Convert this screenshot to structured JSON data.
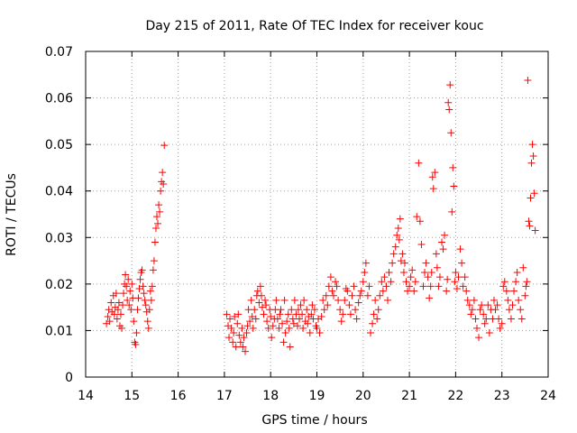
{
  "chart_data": {
    "type": "scatter",
    "title": "Day 215 of 2011, Rate Of TEC Index for receiver kouc",
    "xlabel": "GPS time / hours",
    "ylabel": "ROTI / TECUs",
    "xlim": [
      14,
      24
    ],
    "ylim": [
      0,
      0.07
    ],
    "xticks": [
      "14",
      "15",
      "16",
      "17",
      "18",
      "19",
      "20",
      "21",
      "22",
      "23",
      "24"
    ],
    "yticks": [
      "0",
      "0.01",
      "0.02",
      "0.03",
      "0.04",
      "0.05",
      "0.06",
      "0.07"
    ],
    "grid": true,
    "marker": "+",
    "color": "#ff0000",
    "series": [
      {
        "x": [
          14.45,
          14.48,
          14.5,
          14.52,
          14.55,
          14.57,
          14.6,
          14.62,
          14.64,
          14.66,
          14.68,
          14.7,
          14.72,
          14.74,
          14.76,
          14.78,
          14.8,
          14.82,
          14.84,
          14.86,
          14.88,
          14.9,
          14.92,
          14.94,
          14.96,
          14.98,
          15.0,
          15.02,
          15.04,
          15.06,
          15.08,
          15.1,
          15.12,
          15.14,
          15.16,
          15.18,
          15.2,
          15.22,
          15.24,
          15.26,
          15.28,
          15.3,
          15.32,
          15.34,
          15.36,
          15.38,
          15.4,
          15.42,
          15.44,
          15.46,
          15.48,
          15.5,
          15.52,
          15.54,
          15.56,
          15.58,
          15.6,
          15.62,
          15.64,
          15.66,
          15.68,
          15.7,
          17.05,
          17.08,
          17.1,
          17.12,
          17.15,
          17.18,
          17.2,
          17.22,
          17.25,
          17.28,
          17.3,
          17.32,
          17.35,
          17.38,
          17.4,
          17.42,
          17.45,
          17.48,
          17.5,
          17.52,
          17.55,
          17.58,
          17.6,
          17.62,
          17.65,
          17.68,
          17.7,
          17.72,
          17.75,
          17.78,
          17.8,
          17.82,
          17.85,
          17.88,
          17.9,
          17.92,
          17.95,
          17.98,
          18.0,
          18.02,
          18.05,
          18.08,
          18.1,
          18.12,
          18.15,
          18.18,
          18.2,
          18.22,
          18.25,
          18.28,
          18.3,
          18.32,
          18.35,
          18.38,
          18.4,
          18.42,
          18.45,
          18.48,
          18.5,
          18.52,
          18.55,
          18.58,
          18.6,
          18.62,
          18.65,
          18.68,
          18.7,
          18.72,
          18.75,
          18.78,
          18.8,
          18.82,
          18.85,
          18.88,
          18.9,
          18.92,
          18.95,
          18.98,
          19.0,
          19.03,
          19.06,
          19.1,
          19.13,
          19.16,
          19.2,
          19.23,
          19.26,
          19.3,
          19.33,
          19.36,
          19.4,
          19.43,
          19.46,
          19.5,
          19.53,
          19.56,
          19.6,
          19.63,
          19.66,
          19.7,
          19.73,
          19.76,
          19.8,
          19.83,
          19.86,
          19.9,
          19.93,
          19.96,
          20.0,
          20.03,
          20.06,
          20.1,
          20.13,
          20.16,
          20.2,
          20.23,
          20.26,
          20.3,
          20.33,
          20.36,
          20.4,
          20.43,
          20.46,
          20.5,
          20.53,
          20.56,
          20.6,
          20.63,
          20.66,
          20.7,
          20.73,
          20.76,
          20.78,
          20.8,
          20.82,
          20.85,
          20.88,
          20.9,
          20.93,
          20.96,
          21.0,
          21.03,
          21.06,
          21.1,
          21.13,
          21.16,
          21.2,
          21.23,
          21.26,
          21.3,
          21.33,
          21.36,
          21.4,
          21.43,
          21.46,
          21.48,
          21.5,
          21.52,
          21.55,
          21.58,
          21.6,
          21.63,
          21.66,
          21.7,
          21.73,
          21.76,
          21.8,
          21.82,
          21.84,
          21.86,
          21.88,
          21.9,
          21.92,
          21.94,
          21.96,
          21.98,
          22.0,
          22.03,
          22.06,
          22.1,
          22.13,
          22.16,
          22.2,
          22.23,
          22.26,
          22.3,
          22.33,
          22.36,
          22.4,
          22.43,
          22.46,
          22.5,
          22.53,
          22.56,
          22.6,
          22.63,
          22.66,
          22.7,
          22.73,
          22.76,
          22.8,
          22.83,
          22.86,
          22.9,
          22.93,
          22.96,
          23.0,
          23.03,
          23.06,
          23.1,
          23.13,
          23.16,
          23.2,
          23.23,
          23.26,
          23.3,
          23.33,
          23.36,
          23.4,
          23.43,
          23.46,
          23.5,
          23.52,
          23.54,
          23.56,
          23.58,
          23.6,
          23.62,
          23.64,
          23.66,
          23.68,
          23.7,
          23.72
        ],
        "y": [
          0.0115,
          0.013,
          0.0145,
          0.012,
          0.016,
          0.014,
          0.0175,
          0.0135,
          0.015,
          0.018,
          0.0125,
          0.0145,
          0.016,
          0.011,
          0.0135,
          0.0105,
          0.0155,
          0.018,
          0.02,
          0.022,
          0.0195,
          0.0165,
          0.021,
          0.0155,
          0.0185,
          0.0145,
          0.02,
          0.017,
          0.012,
          0.0075,
          0.007,
          0.0095,
          0.0145,
          0.017,
          0.019,
          0.021,
          0.0225,
          0.023,
          0.0195,
          0.018,
          0.0165,
          0.0155,
          0.014,
          0.012,
          0.0105,
          0.0145,
          0.0185,
          0.0165,
          0.0195,
          0.023,
          0.025,
          0.029,
          0.032,
          0.0345,
          0.033,
          0.037,
          0.0355,
          0.04,
          0.042,
          0.044,
          0.0415,
          0.0498,
          0.0135,
          0.011,
          0.0085,
          0.0125,
          0.0105,
          0.0075,
          0.0095,
          0.013,
          0.0065,
          0.0115,
          0.0135,
          0.009,
          0.0075,
          0.0105,
          0.0065,
          0.0085,
          0.0055,
          0.0095,
          0.011,
          0.0145,
          0.012,
          0.0165,
          0.013,
          0.0105,
          0.0145,
          0.0125,
          0.0175,
          0.0185,
          0.016,
          0.0195,
          0.0175,
          0.015,
          0.0135,
          0.0165,
          0.0155,
          0.012,
          0.0105,
          0.0145,
          0.013,
          0.0085,
          0.011,
          0.0125,
          0.0145,
          0.0165,
          0.0125,
          0.0105,
          0.0135,
          0.0145,
          0.0115,
          0.0075,
          0.0165,
          0.0095,
          0.012,
          0.0135,
          0.0105,
          0.0065,
          0.0145,
          0.0125,
          0.0115,
          0.0165,
          0.0135,
          0.011,
          0.0145,
          0.0125,
          0.0155,
          0.0135,
          0.0105,
          0.0165,
          0.012,
          0.0145,
          0.0115,
          0.013,
          0.0095,
          0.0135,
          0.0155,
          0.0125,
          0.0145,
          0.011,
          0.0105,
          0.0125,
          0.0095,
          0.013,
          0.0165,
          0.0145,
          0.0175,
          0.0155,
          0.0195,
          0.0215,
          0.0185,
          0.0175,
          0.0205,
          0.0195,
          0.0165,
          0.0145,
          0.012,
          0.0135,
          0.0165,
          0.019,
          0.0185,
          0.0155,
          0.0135,
          0.0175,
          0.0195,
          0.0145,
          0.0125,
          0.016,
          0.0175,
          0.0185,
          0.0205,
          0.0225,
          0.0245,
          0.0175,
          0.0195,
          0.0095,
          0.0115,
          0.0135,
          0.0165,
          0.0125,
          0.0145,
          0.0175,
          0.0205,
          0.0185,
          0.0215,
          0.0195,
          0.0165,
          0.0225,
          0.0205,
          0.0245,
          0.0265,
          0.028,
          0.0305,
          0.032,
          0.0295,
          0.034,
          0.025,
          0.0265,
          0.0225,
          0.0245,
          0.0205,
          0.0185,
          0.0195,
          0.0215,
          0.023,
          0.0185,
          0.0205,
          0.0345,
          0.046,
          0.0335,
          0.0285,
          0.0195,
          0.0225,
          0.0245,
          0.0215,
          0.017,
          0.0195,
          0.0225,
          0.043,
          0.0405,
          0.044,
          0.0265,
          0.0235,
          0.0195,
          0.0215,
          0.029,
          0.0275,
          0.0305,
          0.0185,
          0.021,
          0.059,
          0.0575,
          0.0628,
          0.0525,
          0.0355,
          0.045,
          0.041,
          0.0205,
          0.0225,
          0.019,
          0.0215,
          0.0275,
          0.0245,
          0.0195,
          0.0215,
          0.0185,
          0.0165,
          0.0155,
          0.0135,
          0.0145,
          0.0165,
          0.0125,
          0.0105,
          0.0085,
          0.0145,
          0.0155,
          0.0135,
          0.0115,
          0.0125,
          0.0155,
          0.0095,
          0.0145,
          0.0125,
          0.0165,
          0.0145,
          0.0155,
          0.0125,
          0.0105,
          0.0115,
          0.0195,
          0.0205,
          0.0185,
          0.0165,
          0.0145,
          0.0125,
          0.0155,
          0.0185,
          0.0205,
          0.0225,
          0.0165,
          0.0145,
          0.0125,
          0.0235,
          0.0175,
          0.0195,
          0.0205,
          0.0638,
          0.0335,
          0.0325,
          0.0385,
          0.046,
          0.05,
          0.0475,
          0.0395,
          0.0315
        ]
      }
    ]
  }
}
